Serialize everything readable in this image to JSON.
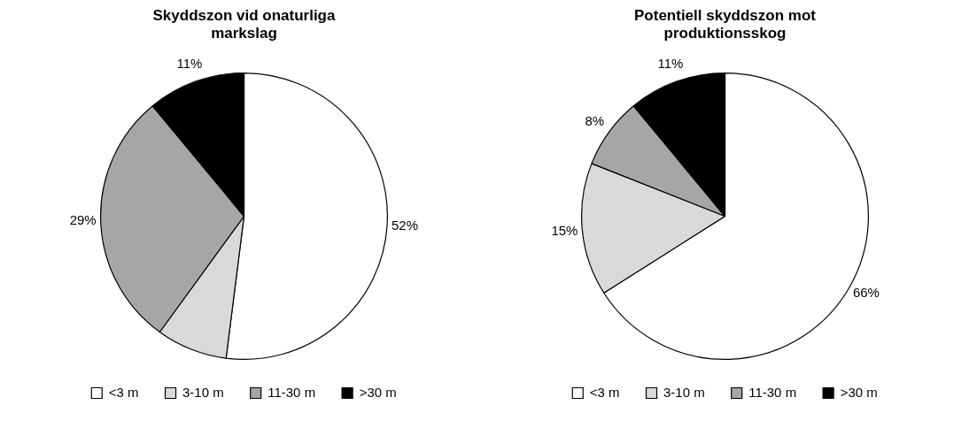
{
  "chart_data": [
    {
      "type": "pie",
      "title": "Skyddszon vid onaturliga markslag",
      "categories": [
        "<3 m",
        "3-10 m",
        "11-30 m",
        ">30 m"
      ],
      "values": [
        52,
        8,
        29,
        11
      ],
      "colors": [
        "#ffffff",
        "#d9d9d9",
        "#a6a6a6",
        "#000000"
      ],
      "value_labels": [
        "52%",
        null,
        "29%",
        "11%"
      ],
      "legend": "bottom"
    },
    {
      "type": "pie",
      "title": "Potentiell skyddszon mot produktionsskog",
      "categories": [
        "<3 m",
        "3-10 m",
        "11-30 m",
        ">30 m"
      ],
      "values": [
        66,
        15,
        8,
        11
      ],
      "colors": [
        "#ffffff",
        "#d9d9d9",
        "#a6a6a6",
        "#000000"
      ],
      "value_labels": [
        "66%",
        "15%",
        "8%",
        "11%"
      ],
      "legend": "bottom"
    }
  ]
}
